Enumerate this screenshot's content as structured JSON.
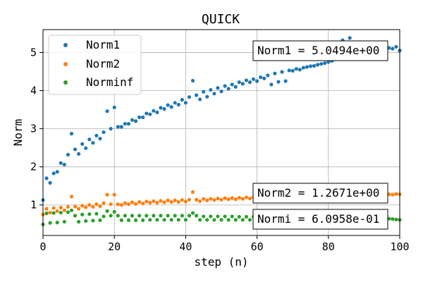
{
  "chart_data": {
    "type": "scatter",
    "title": "QUICK",
    "xlabel": "step (n)",
    "ylabel": "Norm",
    "xlim": [
      0,
      100
    ],
    "ylim": [
      0.2,
      5.6
    ],
    "xticks": [
      0,
      20,
      40,
      60,
      80,
      100
    ],
    "yticks": [
      1,
      2,
      3,
      4,
      5
    ],
    "grid": true,
    "legend_position": "top-left",
    "series": [
      {
        "name": "Norm1",
        "color": "#1f77b4",
        "x": [
          0,
          1,
          2,
          3,
          4,
          5,
          6,
          7,
          8,
          9,
          10,
          11,
          12,
          13,
          14,
          15,
          16,
          17,
          18,
          19,
          20,
          21,
          22,
          23,
          24,
          25,
          26,
          27,
          28,
          29,
          30,
          31,
          32,
          33,
          34,
          35,
          36,
          37,
          38,
          39,
          40,
          41,
          42,
          43,
          44,
          45,
          46,
          47,
          48,
          49,
          50,
          51,
          52,
          53,
          54,
          55,
          56,
          57,
          58,
          59,
          60,
          61,
          62,
          63,
          64,
          65,
          66,
          67,
          68,
          69,
          70,
          71,
          72,
          73,
          74,
          75,
          76,
          77,
          78,
          79,
          80,
          81,
          82,
          83,
          84,
          85,
          86,
          87,
          88,
          89,
          90,
          91,
          92,
          93,
          94,
          95,
          96,
          97,
          98,
          99,
          100
        ],
        "y": [
          1.13,
          1.7,
          1.58,
          1.83,
          1.87,
          2.1,
          2.06,
          2.32,
          2.87,
          2.46,
          2.34,
          2.6,
          2.49,
          2.72,
          2.63,
          2.82,
          2.74,
          2.91,
          3.46,
          3.0,
          3.56,
          3.05,
          3.05,
          3.13,
          3.13,
          3.23,
          3.2,
          3.3,
          3.3,
          3.4,
          3.38,
          3.47,
          3.43,
          3.55,
          3.52,
          3.62,
          3.57,
          3.68,
          3.63,
          3.76,
          3.68,
          3.83,
          4.26,
          3.88,
          3.77,
          3.97,
          3.84,
          4.02,
          3.92,
          4.07,
          3.98,
          4.12,
          4.05,
          4.16,
          4.1,
          4.22,
          4.18,
          4.27,
          4.22,
          4.3,
          4.25,
          4.35,
          4.32,
          4.4,
          4.16,
          4.45,
          4.23,
          4.49,
          4.25,
          4.53,
          4.52,
          4.57,
          4.55,
          4.6,
          4.62,
          4.64,
          4.65,
          4.68,
          4.7,
          4.72,
          4.75,
          4.78,
          4.82,
          5.0,
          5.32,
          5.03,
          5.38,
          5.05,
          4.95,
          5.02,
          4.98,
          5.03,
          5.0,
          5.05,
          5.02,
          5.08,
          5.03,
          5.12,
          5.1,
          5.15,
          5.05
        ]
      },
      {
        "name": "Norm2",
        "color": "#ff7f0e",
        "x": [
          0,
          1,
          2,
          3,
          4,
          5,
          6,
          7,
          8,
          9,
          10,
          11,
          12,
          13,
          14,
          15,
          16,
          17,
          18,
          19,
          20,
          21,
          22,
          23,
          24,
          25,
          26,
          27,
          28,
          29,
          30,
          31,
          32,
          33,
          34,
          35,
          36,
          37,
          38,
          39,
          40,
          41,
          42,
          43,
          44,
          45,
          46,
          47,
          48,
          49,
          50,
          51,
          52,
          53,
          54,
          55,
          56,
          57,
          58,
          59,
          60,
          61,
          62,
          63,
          64,
          65,
          66,
          67,
          68,
          69,
          70,
          71,
          72,
          73,
          74,
          75,
          76,
          77,
          78,
          79,
          80,
          81,
          82,
          83,
          84,
          85,
          86,
          87,
          88,
          89,
          90,
          91,
          92,
          93,
          94,
          95,
          96,
          97,
          98,
          99,
          100
        ],
        "y": [
          0.75,
          0.9,
          0.8,
          0.92,
          0.84,
          0.93,
          0.86,
          0.95,
          1.22,
          0.96,
          0.9,
          0.98,
          0.94,
          1.0,
          0.95,
          1.02,
          0.97,
          1.05,
          1.27,
          1.02,
          1.27,
          1.02,
          1.0,
          1.05,
          1.02,
          1.07,
          1.03,
          1.08,
          1.04,
          1.09,
          1.06,
          1.1,
          1.06,
          1.11,
          1.07,
          1.12,
          1.08,
          1.12,
          1.08,
          1.13,
          1.09,
          1.14,
          1.34,
          1.14,
          1.1,
          1.16,
          1.12,
          1.16,
          1.13,
          1.17,
          1.14,
          1.18,
          1.15,
          1.18,
          1.15,
          1.19,
          1.16,
          1.2,
          1.17,
          1.2,
          1.17,
          1.21,
          1.18,
          1.22,
          1.17,
          1.22,
          1.18,
          1.23,
          1.18,
          1.23,
          1.2,
          1.24,
          1.22,
          1.24,
          1.23,
          1.25,
          1.24,
          1.25,
          1.24,
          1.26,
          1.25,
          1.26,
          1.25,
          1.27,
          1.28,
          1.26,
          1.29,
          1.26,
          1.25,
          1.27,
          1.26,
          1.27,
          1.26,
          1.28,
          1.27,
          1.28,
          1.27,
          1.28,
          1.27,
          1.29,
          1.28
        ]
      },
      {
        "name": "Norminf",
        "color": "#2ca02c",
        "x": [
          0,
          1,
          2,
          3,
          4,
          5,
          6,
          7,
          8,
          9,
          10,
          11,
          12,
          13,
          14,
          15,
          16,
          17,
          18,
          19,
          20,
          21,
          22,
          23,
          24,
          25,
          26,
          27,
          28,
          29,
          30,
          31,
          32,
          33,
          34,
          35,
          36,
          37,
          38,
          39,
          40,
          41,
          42,
          43,
          44,
          45,
          46,
          47,
          48,
          49,
          50,
          51,
          52,
          53,
          54,
          55,
          56,
          57,
          58,
          59,
          60,
          61,
          62,
          63,
          64,
          65,
          66,
          67,
          68,
          69,
          70,
          71,
          72,
          73,
          74,
          75,
          76,
          77,
          78,
          79,
          80,
          81,
          82,
          83,
          84,
          85,
          86,
          87,
          88,
          89,
          90,
          91,
          92,
          93,
          94,
          95,
          96,
          97,
          98,
          99,
          100
        ],
        "y": [
          0.49,
          0.78,
          0.53,
          0.79,
          0.54,
          0.8,
          0.56,
          0.81,
          0.86,
          0.72,
          0.56,
          0.75,
          0.58,
          0.76,
          0.59,
          0.77,
          0.6,
          0.7,
          0.84,
          0.72,
          0.82,
          0.72,
          0.6,
          0.72,
          0.6,
          0.72,
          0.6,
          0.72,
          0.6,
          0.72,
          0.61,
          0.72,
          0.61,
          0.72,
          0.61,
          0.72,
          0.61,
          0.72,
          0.61,
          0.72,
          0.61,
          0.72,
          0.79,
          0.72,
          0.61,
          0.7,
          0.61,
          0.7,
          0.61,
          0.7,
          0.61,
          0.7,
          0.61,
          0.7,
          0.61,
          0.69,
          0.61,
          0.69,
          0.61,
          0.69,
          0.61,
          0.69,
          0.61,
          0.68,
          0.61,
          0.68,
          0.61,
          0.68,
          0.61,
          0.68,
          0.61,
          0.67,
          0.62,
          0.67,
          0.62,
          0.67,
          0.62,
          0.67,
          0.62,
          0.66,
          0.62,
          0.66,
          0.62,
          0.66,
          0.63,
          0.66,
          0.63,
          0.65,
          0.63,
          0.65,
          0.63,
          0.65,
          0.63,
          0.65,
          0.63,
          0.64,
          0.63,
          0.64,
          0.63,
          0.62,
          0.61
        ]
      }
    ],
    "annotations": [
      {
        "text": "Norm1 = 5.0494e+00",
        "series": "Norm1"
      },
      {
        "text": "Norm2 = 1.2671e+00",
        "series": "Norm2"
      },
      {
        "text": "Normi = 6.0958e-01",
        "series": "Norminf"
      }
    ]
  }
}
